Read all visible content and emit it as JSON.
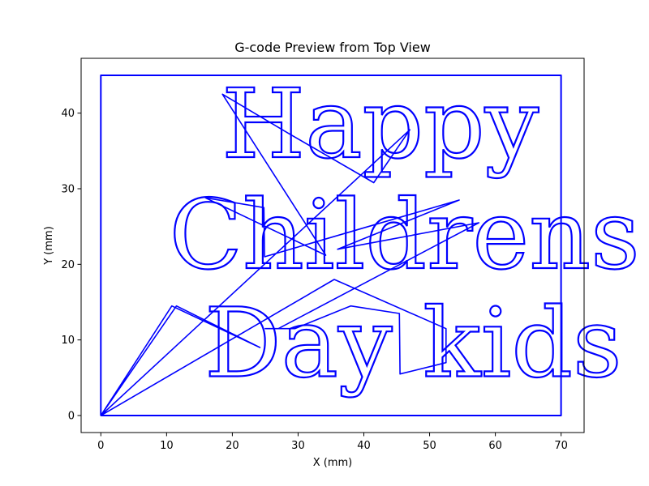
{
  "chart_data": {
    "type": "line",
    "title": "G-code Preview from Top View",
    "xlabel": "X (mm)",
    "ylabel": "Y (mm)",
    "xlim": [
      -3,
      73.5
    ],
    "ylim": [
      -2.25,
      47.25
    ],
    "x_ticks": [
      0,
      10,
      20,
      30,
      40,
      50,
      60,
      70
    ],
    "y_ticks": [
      0,
      10,
      20,
      30,
      40
    ],
    "grid": false,
    "legend": "none",
    "series_color": "#0000ff",
    "border_path": [
      [
        0,
        0
      ],
      [
        0,
        45
      ],
      [
        70,
        45
      ],
      [
        70,
        0
      ],
      [
        0,
        0
      ]
    ],
    "travel_path": [
      [
        0,
        0
      ],
      [
        10.8,
        14.5
      ],
      [
        24.2,
        9
      ],
      [
        11.5,
        14.5
      ],
      [
        0,
        0
      ],
      [
        47,
        37.8
      ],
      [
        41.5,
        30.8
      ],
      [
        28.6,
        37.3
      ],
      [
        18.5,
        42.5
      ],
      [
        34.2,
        21.2
      ],
      [
        15.9,
        28.8
      ],
      [
        24.8,
        27.5
      ],
      [
        24.9,
        21
      ],
      [
        54.5,
        28.5
      ],
      [
        36,
        22
      ],
      [
        57.5,
        25.5
      ],
      [
        27,
        11.5
      ],
      [
        25,
        11.5
      ],
      [
        29.5,
        11.5
      ],
      [
        38,
        14.5
      ],
      [
        45.4,
        13.5
      ],
      [
        45.5,
        5.5
      ],
      [
        52.5,
        7
      ],
      [
        52.5,
        11.5
      ],
      [
        35.5,
        18
      ],
      [
        0,
        0
      ]
    ],
    "text_lines": [
      {
        "text": "Happy",
        "x": 42.5,
        "y": 34.2
      },
      {
        "text": "Childrens",
        "x": 46.2,
        "y": 19.5
      },
      {
        "text": "Day kids",
        "x": 47.5,
        "y": 5.2
      }
    ]
  }
}
